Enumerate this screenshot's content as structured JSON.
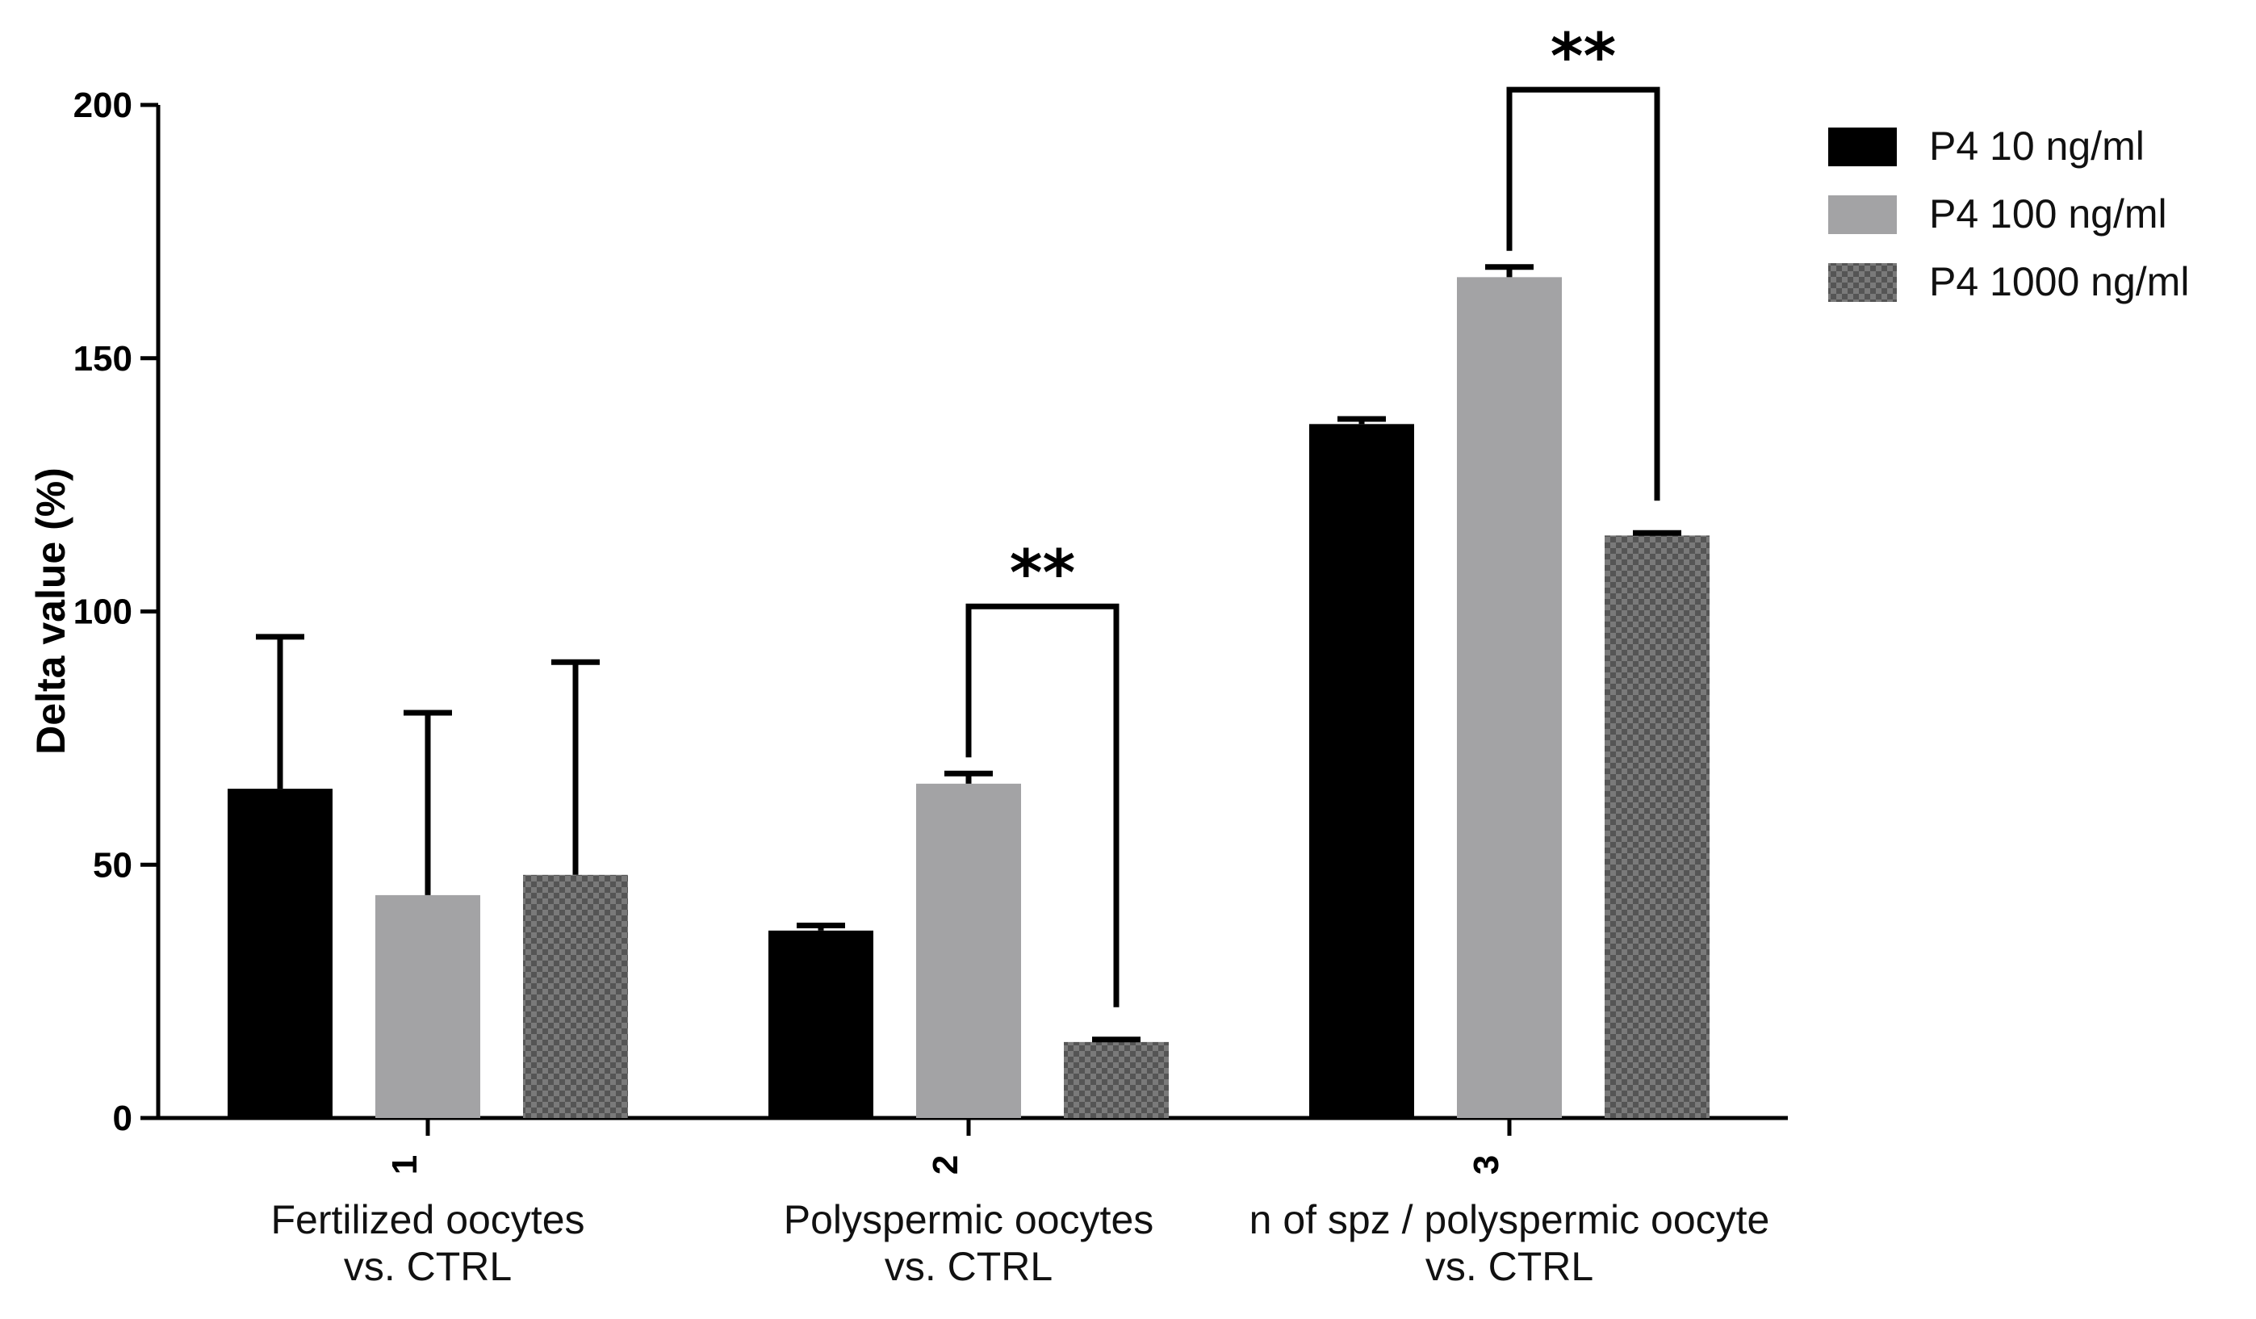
{
  "chart_data": {
    "type": "bar",
    "title": "",
    "xlabel": "",
    "ylabel": "Delta value (%)",
    "ylim": [
      0,
      200
    ],
    "yticks": [
      0,
      50,
      100,
      150,
      200
    ],
    "categories": [
      "1",
      "2",
      "3"
    ],
    "category_labels": [
      [
        "Fertilized oocytes",
        "vs. CTRL"
      ],
      [
        "Polyspermic oocytes",
        "vs. CTRL"
      ],
      [
        "n of spz / polyspermic oocyte",
        "vs. CTRL"
      ]
    ],
    "series": [
      {
        "name": "P4 10 ng/ml",
        "color": "#000000",
        "pattern": "solid",
        "values": [
          65,
          37,
          137
        ],
        "errors": [
          30,
          1,
          1
        ]
      },
      {
        "name": "P4 100 ng/ml",
        "color": "#a3a3a5",
        "pattern": "solid",
        "values": [
          44,
          66,
          166
        ],
        "errors": [
          36,
          2,
          2
        ]
      },
      {
        "name": "P4 1000 ng/ml",
        "color": "#6f6f6f",
        "pattern": "checkered",
        "values": [
          48,
          15,
          115
        ],
        "errors": [
          42,
          0.5,
          0.5
        ]
      }
    ],
    "significance": [
      {
        "category_index": 1,
        "from_series": 1,
        "to_series": 2,
        "label": "**",
        "level": 101
      },
      {
        "category_index": 2,
        "from_series": 1,
        "to_series": 2,
        "label": "**",
        "level": 203
      }
    ],
    "legend_position": "top-right"
  }
}
